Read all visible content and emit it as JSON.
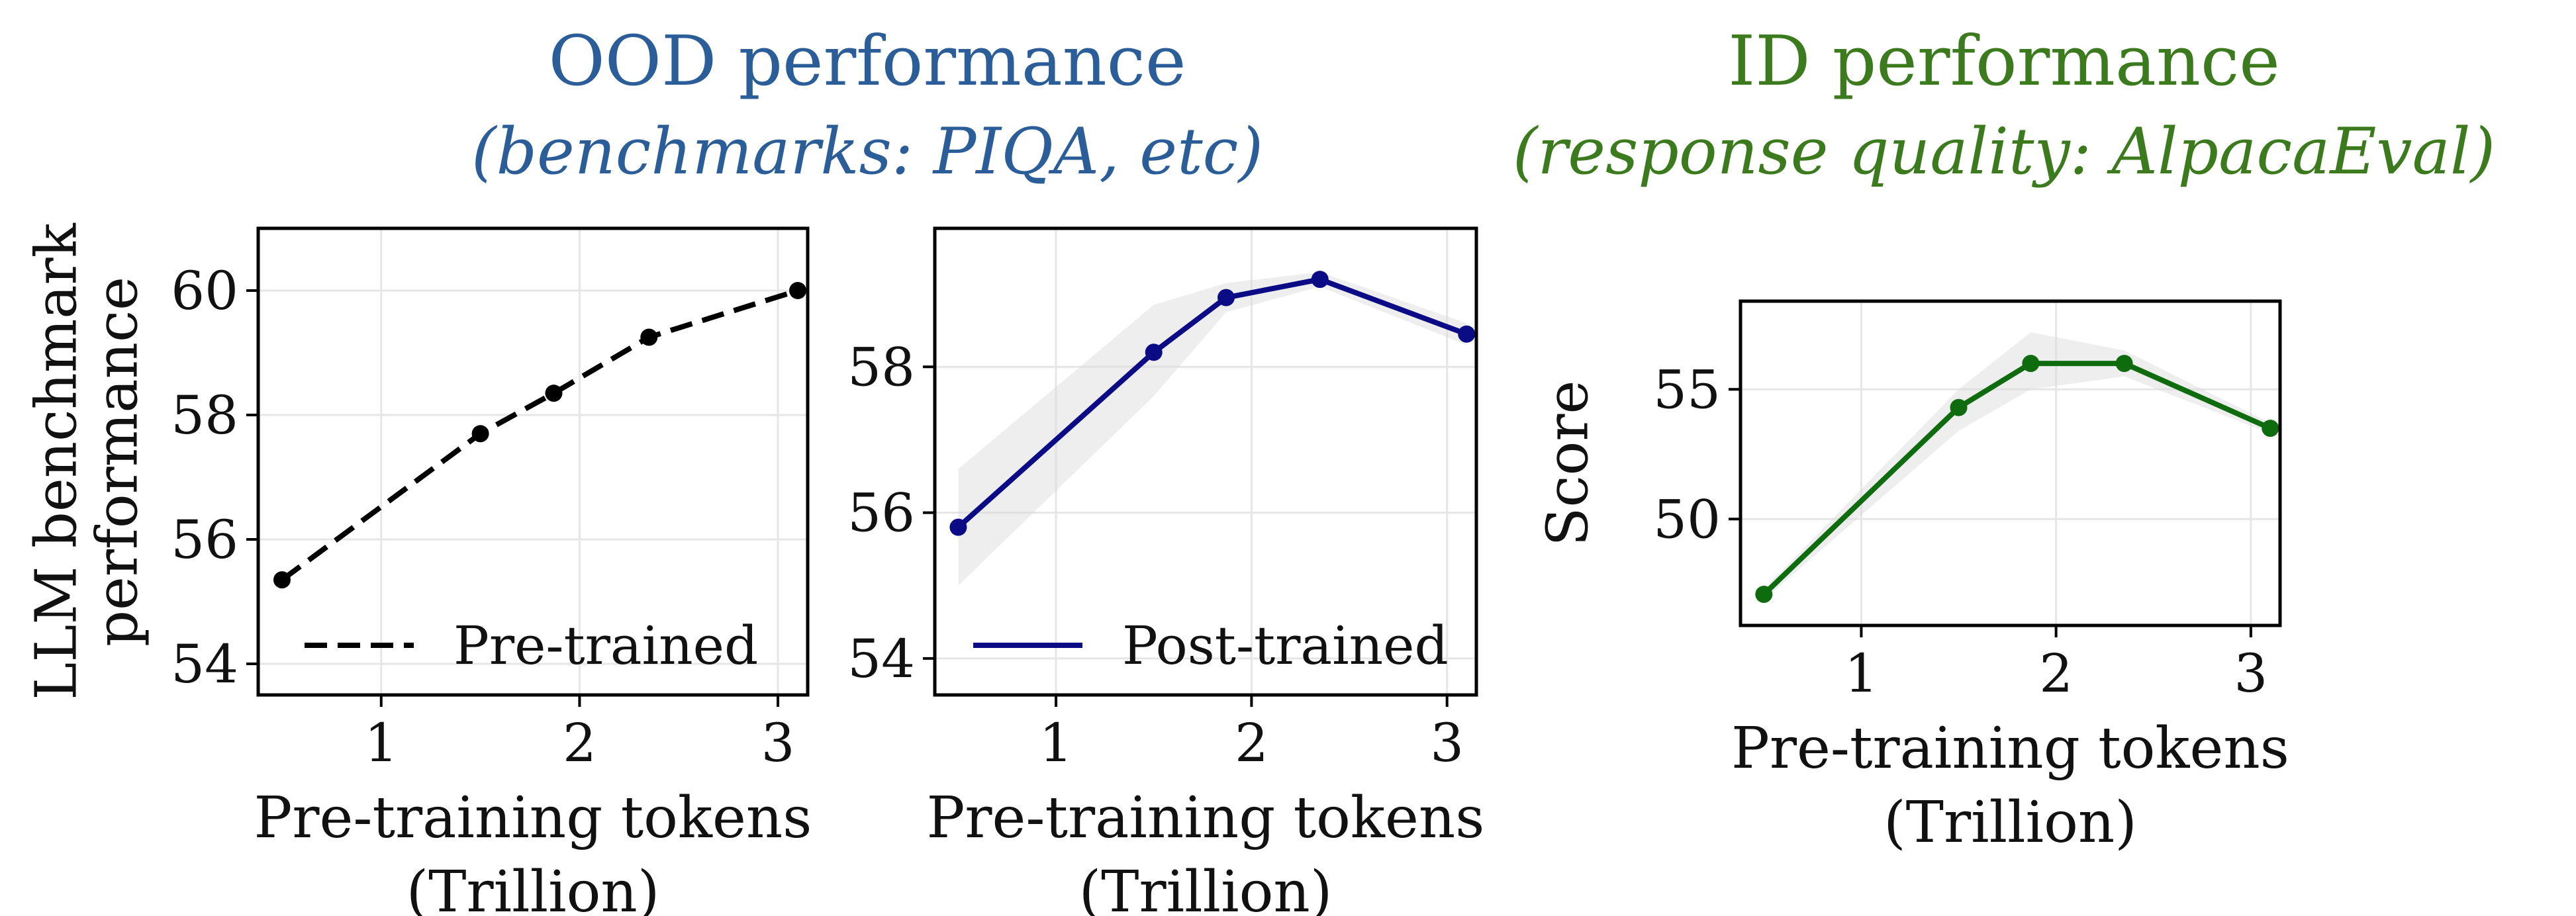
{
  "headers": {
    "ood": {
      "title": "OOD performance",
      "subtitle": "(benchmarks: PIQA, etc)",
      "color": "#2b5e99"
    },
    "id": {
      "title": "ID performance",
      "subtitle": "(response quality: AlpacaEval)",
      "color": "#3c7a1e"
    }
  },
  "chart_data": [
    {
      "type": "line",
      "ylabel": [
        "LLM benchmark",
        "performance"
      ],
      "xlabel": [
        "Pre-training tokens",
        "(Trillion)"
      ],
      "xlim": [
        0.38,
        3.15
      ],
      "ylim": [
        53.5,
        61
      ],
      "xticks": [
        1,
        2,
        3
      ],
      "yticks": [
        54,
        56,
        58,
        60
      ],
      "grid": true,
      "legend": "lower-right",
      "series": [
        {
          "name": "Pre-trained",
          "style": "dashed",
          "color": "#000000",
          "x": [
            0.5,
            1.5,
            1.87,
            2.35,
            3.1
          ],
          "y": [
            55.35,
            57.7,
            58.35,
            59.25,
            60.0
          ]
        }
      ]
    },
    {
      "type": "line",
      "ylabel": [],
      "xlabel": [
        "Pre-training tokens",
        "(Trillion)"
      ],
      "xlim": [
        0.38,
        3.15
      ],
      "ylim": [
        53.5,
        59.9
      ],
      "xticks": [
        1,
        2,
        3
      ],
      "yticks": [
        54,
        56,
        58
      ],
      "grid": true,
      "legend": "lower-right",
      "series": [
        {
          "name": "Post-trained",
          "style": "solid",
          "color": "#0b0b85",
          "x": [
            0.5,
            1.5,
            1.87,
            2.35,
            3.1
          ],
          "y": [
            55.8,
            58.2,
            58.95,
            59.2,
            58.45
          ],
          "band_low": [
            55.0,
            57.6,
            58.75,
            59.1,
            58.3
          ],
          "band_high": [
            56.6,
            58.85,
            59.15,
            59.3,
            58.6
          ]
        }
      ]
    },
    {
      "type": "line",
      "ylabel": [
        "Score"
      ],
      "xlabel": [
        "Pre-training tokens",
        "(Trillion)"
      ],
      "xlim": [
        0.38,
        3.15
      ],
      "ylim": [
        45.9,
        58.4
      ],
      "xticks": [
        1,
        2,
        3
      ],
      "yticks": [
        50,
        55
      ],
      "grid": true,
      "legend": "none",
      "series": [
        {
          "name": "",
          "style": "solid",
          "color": "#0e6b0e",
          "x": [
            0.5,
            1.5,
            1.87,
            2.35,
            3.1
          ],
          "y": [
            47.1,
            54.3,
            56.0,
            56.0,
            53.5
          ],
          "band_low": [
            46.9,
            53.4,
            55.0,
            55.5,
            53.3
          ],
          "band_high": [
            47.3,
            55.0,
            57.2,
            56.5,
            53.7
          ]
        }
      ]
    }
  ]
}
